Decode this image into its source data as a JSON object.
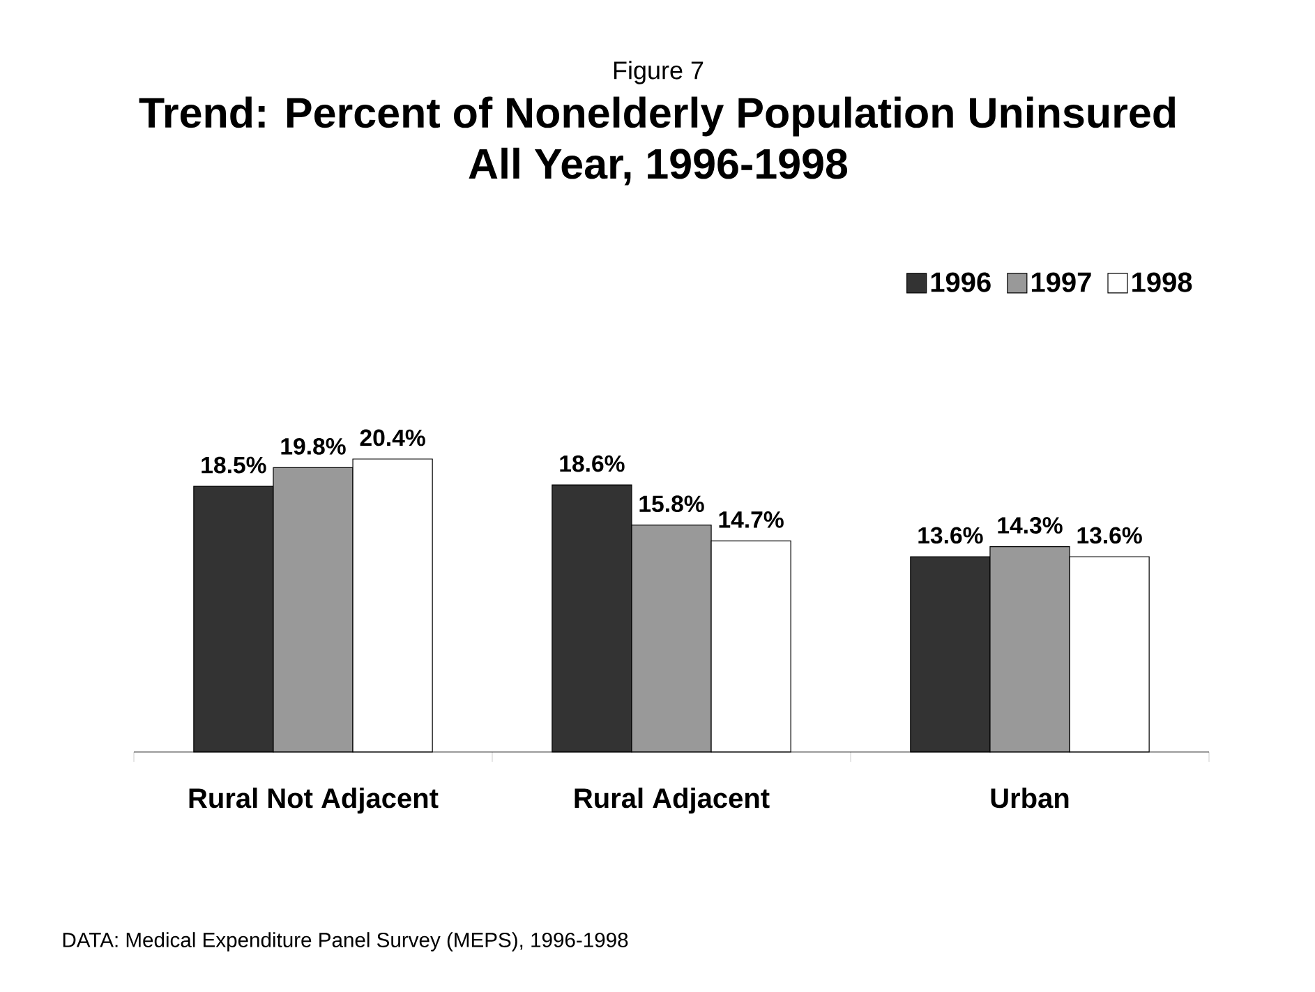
{
  "chart_data": {
    "type": "bar",
    "title": "Trend:  Percent of Nonelderly Population Uninsured All Year, 1996-1998",
    "categories": [
      "Rural Not Adjacent",
      "Rural Adjacent",
      "Urban"
    ],
    "series": [
      {
        "name": "1996",
        "color": "#333333",
        "values": [
          18.5,
          18.6,
          13.6
        ],
        "value_labels": [
          "18.5%",
          "18.6%",
          "13.6%"
        ]
      },
      {
        "name": "1997",
        "color": "#999999",
        "values": [
          19.8,
          15.8,
          14.3
        ],
        "value_labels": [
          "19.8%",
          "15.8%",
          "14.3%"
        ]
      },
      {
        "name": "1998",
        "color": "#ffffff",
        "values": [
          20.4,
          14.7,
          13.6
        ],
        "value_labels": [
          "20.4%",
          "14.7%",
          "13.6%"
        ]
      }
    ],
    "legend": "top right",
    "annotations": [
      "Figure 7",
      "DATA: Medical Expenditure Panel Survey (MEPS), 1996-1998"
    ]
  }
}
